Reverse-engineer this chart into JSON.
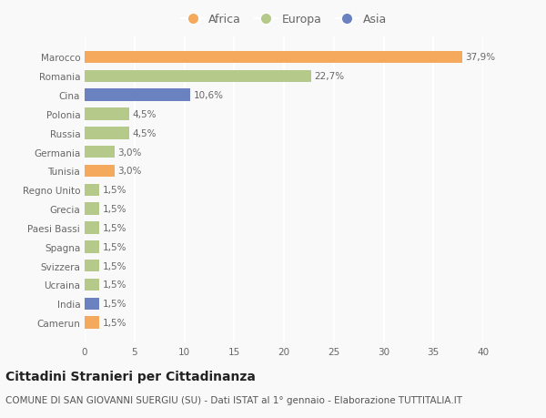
{
  "countries": [
    "Camerun",
    "India",
    "Ucraina",
    "Svizzera",
    "Spagna",
    "Paesi Bassi",
    "Grecia",
    "Regno Unito",
    "Tunisia",
    "Germania",
    "Russia",
    "Polonia",
    "Cina",
    "Romania",
    "Marocco"
  ],
  "values": [
    1.5,
    1.5,
    1.5,
    1.5,
    1.5,
    1.5,
    1.5,
    1.5,
    3.0,
    3.0,
    4.5,
    4.5,
    10.6,
    22.7,
    37.9
  ],
  "labels": [
    "1,5%",
    "1,5%",
    "1,5%",
    "1,5%",
    "1,5%",
    "1,5%",
    "1,5%",
    "1,5%",
    "3,0%",
    "3,0%",
    "4,5%",
    "4,5%",
    "10,6%",
    "22,7%",
    "37,9%"
  ],
  "colors": [
    "#f5a95c",
    "#6b82c0",
    "#b5c98a",
    "#b5c98a",
    "#b5c98a",
    "#b5c98a",
    "#b5c98a",
    "#b5c98a",
    "#f5a95c",
    "#b5c98a",
    "#b5c98a",
    "#b5c98a",
    "#6b82c0",
    "#b5c98a",
    "#f5a95c"
  ],
  "continent_colors": {
    "Africa": "#f5a95c",
    "Europa": "#b5c98a",
    "Asia": "#6b82c0"
  },
  "legend_labels": [
    "Africa",
    "Europa",
    "Asia"
  ],
  "title": "Cittadini Stranieri per Cittadinanza",
  "subtitle": "COMUNE DI SAN GIOVANNI SUERGIU (SU) - Dati ISTAT al 1° gennaio - Elaborazione TUTTITALIA.IT",
  "xlim": [
    0,
    40
  ],
  "xticks": [
    0,
    5,
    10,
    15,
    20,
    25,
    30,
    35,
    40
  ],
  "background_color": "#f9f9f9",
  "plot_bg_color": "#f9f9f9",
  "grid_color": "#ffffff",
  "bar_height": 0.65,
  "title_fontsize": 10,
  "subtitle_fontsize": 7.5,
  "label_fontsize": 7.5,
  "tick_fontsize": 7.5,
  "legend_fontsize": 9
}
